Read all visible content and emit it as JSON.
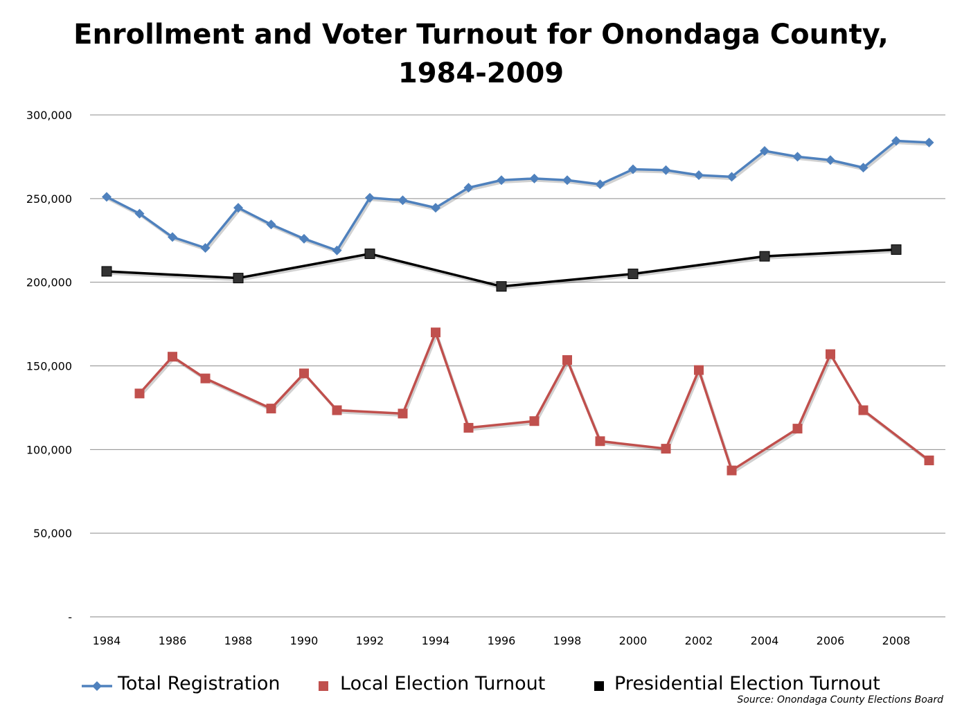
{
  "chart_data": {
    "type": "line",
    "title_lines": [
      "Enrollment and Voter Turnout for Onondaga County,",
      "1984-2009"
    ],
    "x": [
      1984,
      1985,
      1986,
      1987,
      1988,
      1989,
      1990,
      1991,
      1992,
      1993,
      1994,
      1995,
      1996,
      1997,
      1998,
      1999,
      2000,
      2001,
      2002,
      2003,
      2004,
      2005,
      2006,
      2007,
      2008,
      2009
    ],
    "x_tick_labels": [
      "1984",
      "1986",
      "1988",
      "1990",
      "1992",
      "1994",
      "1996",
      "1998",
      "2000",
      "2002",
      "2004",
      "2006",
      "2008"
    ],
    "y_ticks": [
      0,
      50000,
      100000,
      150000,
      200000,
      250000,
      300000
    ],
    "y_tick_labels": [
      "-",
      "50,000",
      "100,000",
      "150,000",
      "200,000",
      "250,000",
      "300,000"
    ],
    "ylim": [
      0,
      300000
    ],
    "grid": "horizontal",
    "legend_position": "bottom",
    "series": [
      {
        "name": "Total Registration",
        "color": "#4F81BD",
        "marker": "diamond",
        "values": [
          251000,
          241000,
          227000,
          220500,
          244500,
          234500,
          226000,
          219000,
          250500,
          249000,
          244500,
          256500,
          261000,
          262000,
          261000,
          258500,
          267500,
          267000,
          264000,
          263000,
          278500,
          275000,
          273000,
          268500,
          284500,
          283500
        ]
      },
      {
        "name": "Local Election Turnout",
        "color": "#C0504D",
        "marker": "square",
        "values": [
          null,
          133500,
          155500,
          142500,
          null,
          124500,
          145500,
          123500,
          null,
          121500,
          170000,
          113000,
          null,
          117000,
          153500,
          105000,
          null,
          100500,
          147500,
          87500,
          null,
          112500,
          157000,
          123500,
          null,
          93500
        ]
      },
      {
        "name": "Presidential Election Turnout",
        "color": "#000000",
        "marker": "square",
        "values": [
          206500,
          null,
          null,
          null,
          202500,
          null,
          null,
          null,
          217000,
          null,
          null,
          null,
          197500,
          null,
          null,
          null,
          205000,
          null,
          null,
          null,
          215500,
          null,
          null,
          null,
          219500,
          null
        ]
      }
    ]
  },
  "source_text": "Source:  Onondaga County Elections Board"
}
